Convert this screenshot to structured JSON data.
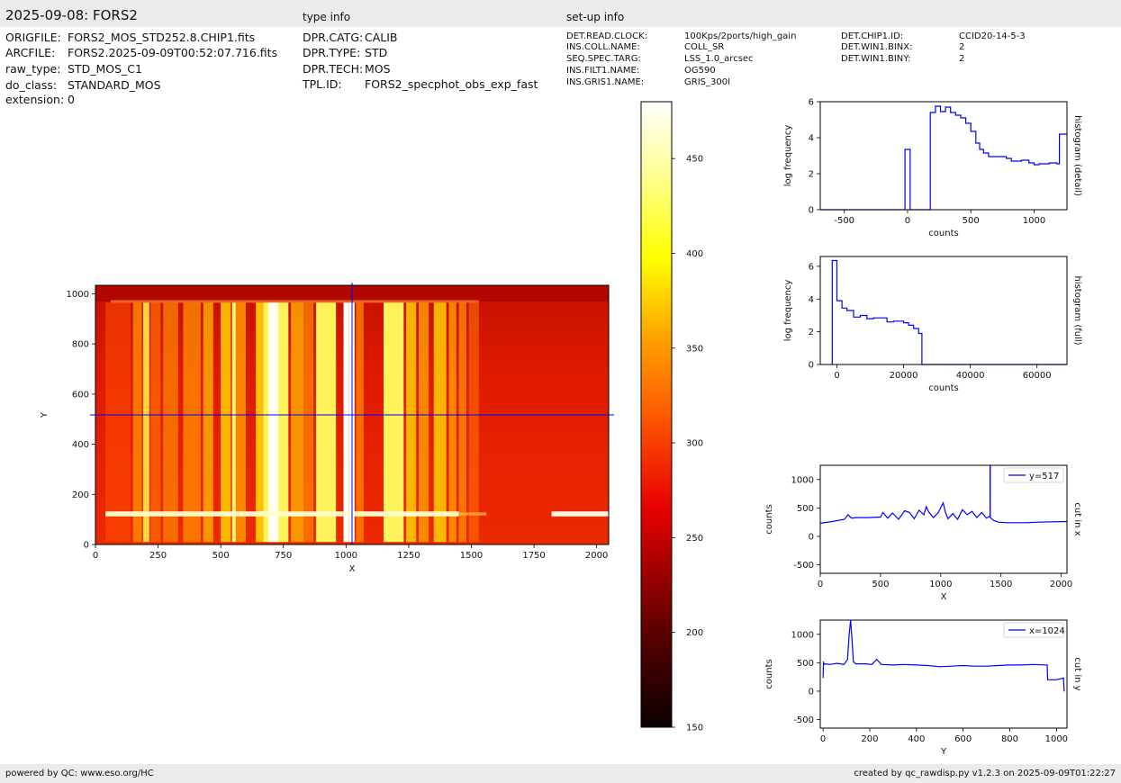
{
  "header": {
    "title": "2025-09-08: FORS2",
    "type_info_label": "type info",
    "setup_info_label": "set-up info"
  },
  "file_info": [
    {
      "key": "ORIGFILE:",
      "value": "FORS2_MOS_STD252.8.CHIP1.fits"
    },
    {
      "key": "ARCFILE:",
      "value": "FORS2.2025-09-09T00:52:07.716.fits"
    },
    {
      "key": "raw_type:",
      "value": "STD_MOS_C1"
    },
    {
      "key": "do_class:",
      "value": "STANDARD_MOS"
    },
    {
      "key": "extension:",
      "value": "0"
    }
  ],
  "type_info": [
    {
      "key": "DPR.CATG:",
      "value": "CALIB"
    },
    {
      "key": "DPR.TYPE:",
      "value": "STD"
    },
    {
      "key": "DPR.TECH:",
      "value": "MOS"
    },
    {
      "key": "TPL.ID:",
      "value": "FORS2_specphot_obs_exp_fast"
    }
  ],
  "setup_info_col1": [
    {
      "key": "DET.READ.CLOCK:",
      "value": "100Kps/2ports/high_gain"
    },
    {
      "key": "INS.COLL.NAME:",
      "value": "COLL_SR"
    },
    {
      "key": "SEQ.SPEC.TARG:",
      "value": "LSS_1.0_arcsec"
    },
    {
      "key": "INS.FILT1.NAME:",
      "value": "OG590"
    },
    {
      "key": "INS.GRIS1.NAME:",
      "value": "GRIS_300I"
    }
  ],
  "setup_info_col2": [
    {
      "key": "DET.CHIP1.ID:",
      "value": "CCID20-14-5-3"
    },
    {
      "key": "DET.WIN1.BINX:",
      "value": "2"
    },
    {
      "key": "DET.WIN1.BINY:",
      "value": "2"
    }
  ],
  "footer": {
    "left": "powered by QC: www.eso.org/HC",
    "right": "created by qc_rawdisp.py v1.2.3 on 2025-09-09T01:22:27"
  },
  "colors": {
    "curve": "#0000ff",
    "frame": "#000000",
    "bar": "#ebebeb"
  },
  "chart_data": [
    {
      "type": "heatmap",
      "colormap": "hot",
      "xlabel": "X",
      "ylabel": "Y",
      "xlim": [
        0,
        2048
      ],
      "ylim": [
        0,
        1034
      ],
      "xticks": [
        0,
        250,
        500,
        750,
        1000,
        1250,
        1500,
        1750,
        2000
      ],
      "yticks": [
        0,
        200,
        400,
        600,
        800,
        1000
      ],
      "cut_x": 1024,
      "cut_y": 517,
      "colorbar": {
        "range": [
          150,
          480
        ],
        "ticks": [
          150,
          200,
          250,
          300,
          350,
          400,
          450
        ]
      }
    },
    {
      "type": "line",
      "step": true,
      "xlabel": "counts",
      "ylabel": "log frequency",
      "side_label": "histogram (detail)",
      "xlim": [
        -690,
        1260
      ],
      "ylim": [
        0,
        6
      ],
      "xticks": [
        -500,
        0,
        500,
        1000
      ],
      "yticks": [
        0,
        2,
        4,
        6
      ],
      "x": [
        -690,
        -20,
        -20,
        20,
        20,
        180,
        180,
        220,
        220,
        260,
        260,
        300,
        300,
        340,
        340,
        380,
        380,
        420,
        420,
        460,
        460,
        500,
        500,
        540,
        540,
        570,
        570,
        600,
        600,
        640,
        640,
        700,
        700,
        780,
        780,
        820,
        820,
        900,
        900,
        960,
        960,
        1000,
        1000,
        1040,
        1040,
        1120,
        1120,
        1180,
        1180,
        1200,
        1200,
        1260
      ],
      "y": [
        0,
        0,
        3.35,
        3.35,
        0,
        0,
        5.4,
        5.4,
        5.75,
        5.75,
        5.45,
        5.45,
        5.7,
        5.7,
        5.4,
        5.4,
        5.25,
        5.25,
        5.1,
        5.1,
        4.8,
        4.8,
        4.35,
        4.35,
        3.7,
        3.7,
        3.35,
        3.35,
        3.15,
        3.15,
        2.95,
        2.95,
        2.95,
        2.95,
        2.85,
        2.85,
        2.7,
        2.7,
        2.75,
        2.75,
        2.6,
        2.6,
        2.5,
        2.5,
        2.55,
        2.55,
        2.6,
        2.6,
        2.55,
        2.55,
        4.2,
        4.2
      ]
    },
    {
      "type": "line",
      "step": true,
      "xlabel": "counts",
      "ylabel": "log frequency",
      "side_label": "histogram (full)",
      "xlim": [
        -5000,
        69000
      ],
      "ylim": [
        0,
        6.6
      ],
      "xticks": [
        0,
        20000,
        40000,
        60000
      ],
      "yticks": [
        0,
        2,
        4,
        6
      ],
      "x": [
        -1400,
        -1400,
        0,
        0,
        1500,
        1500,
        3000,
        3000,
        5000,
        5000,
        7000,
        7000,
        9000,
        9000,
        11000,
        11000,
        15000,
        15000,
        17000,
        17000,
        20000,
        20000,
        21500,
        21500,
        23000,
        23000,
        24500,
        24500,
        25500,
        25500,
        69000
      ],
      "y": [
        0,
        6.35,
        6.35,
        3.9,
        3.9,
        3.45,
        3.45,
        3.3,
        3.3,
        2.9,
        2.9,
        3.0,
        3.0,
        2.8,
        2.8,
        2.85,
        2.85,
        2.6,
        2.6,
        2.65,
        2.65,
        2.55,
        2.55,
        2.4,
        2.4,
        2.2,
        2.2,
        1.9,
        1.9,
        0,
        0
      ]
    },
    {
      "type": "line",
      "xlabel": "X",
      "ylabel": "counts",
      "side_label": "cut in x",
      "legend": "y=517",
      "xlim": [
        0,
        2048
      ],
      "ylim": [
        -650,
        1250
      ],
      "xticks": [
        0,
        500,
        1000,
        1500,
        2000
      ],
      "yticks": [
        -500,
        0,
        500,
        1000
      ],
      "x": [
        0,
        100,
        200,
        230,
        260,
        300,
        400,
        500,
        520,
        560,
        600,
        650,
        700,
        740,
        780,
        820,
        860,
        880,
        900,
        940,
        980,
        1020,
        1040,
        1060,
        1100,
        1140,
        1180,
        1220,
        1260,
        1300,
        1340,
        1380,
        1410,
        1410,
        1411,
        1411,
        1440,
        1480,
        1550,
        1700,
        1800,
        2048
      ],
      "y": [
        230,
        260,
        300,
        380,
        320,
        330,
        330,
        340,
        420,
        320,
        410,
        300,
        450,
        420,
        310,
        460,
        380,
        520,
        430,
        330,
        420,
        590,
        420,
        310,
        400,
        300,
        470,
        380,
        440,
        330,
        420,
        320,
        360,
        1250,
        1250,
        330,
        280,
        250,
        240,
        240,
        250,
        260
      ]
    },
    {
      "type": "line",
      "xlabel": "Y",
      "ylabel": "counts",
      "side_label": "cut in y",
      "legend": "x=1024",
      "xlim": [
        -12,
        1045
      ],
      "ylim": [
        -650,
        1250
      ],
      "xticks": [
        0,
        200,
        400,
        600,
        800,
        1000
      ],
      "yticks": [
        -500,
        0,
        500,
        1000
      ],
      "x": [
        0,
        2,
        4,
        8,
        30,
        60,
        90,
        105,
        112,
        118,
        124,
        130,
        140,
        180,
        210,
        230,
        250,
        300,
        350,
        400,
        450,
        500,
        550,
        600,
        650,
        700,
        750,
        800,
        850,
        900,
        960,
        962,
        1000,
        1030,
        1033,
        1034
      ],
      "y": [
        230,
        520,
        470,
        480,
        470,
        490,
        470,
        560,
        1000,
        1250,
        900,
        520,
        480,
        480,
        470,
        560,
        470,
        460,
        470,
        460,
        450,
        430,
        440,
        450,
        440,
        440,
        450,
        460,
        460,
        470,
        460,
        200,
        200,
        230,
        0,
        0
      ]
    }
  ]
}
